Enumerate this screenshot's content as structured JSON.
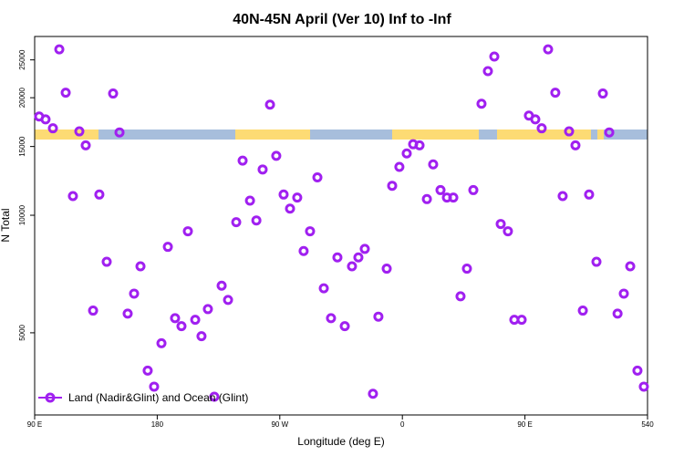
{
  "chart_data": {
    "type": "scatter",
    "title": "40N-45N April (Ver 10)   Inf to -Inf",
    "x_label": "Longitude (deg E)",
    "y_label": "N Total",
    "x": [
      93.3,
      98.0,
      103.4,
      108.1,
      112.8,
      118.1,
      122.8,
      127.5,
      132.9,
      137.5,
      142.9,
      147.6,
      152.3,
      158.3,
      163.0,
      167.7,
      173.0,
      177.7,
      183.1,
      187.8,
      193.1,
      197.8,
      202.5,
      207.9,
      212.5,
      217.2,
      221.9,
      227.3,
      232.0,
      238.0,
      242.7,
      248.1,
      252.8,
      257.4,
      262.8,
      267.4,
      272.8,
      277.5,
      282.8,
      287.5,
      292.2,
      297.6,
      302.3,
      307.6,
      312.3,
      317.7,
      323.0,
      327.7,
      332.4,
      338.4,
      342.4,
      348.5,
      352.5,
      357.8,
      363.2,
      367.9,
      372.6,
      378.0,
      382.6,
      388.0,
      392.7,
      397.4,
      402.7,
      407.4,
      412.1,
      418.1,
      422.8,
      427.5,
      432.2,
      437.5,
      442.2,
      447.6,
      452.9,
      457.6,
      462.3,
      467.0,
      472.3,
      477.7,
      482.4,
      487.1,
      492.5,
      497.1,
      502.5,
      507.2,
      511.9,
      518.0,
      522.6,
      527.3,
      532.6,
      537.3
    ],
    "series": [
      {
        "name": "Land (Nadir&Glint) and Ocean (Glint)",
        "color": "#a020f0",
        "values": [
          17900,
          17600,
          16700,
          26600,
          20600,
          11200,
          16400,
          15100,
          5700,
          11300,
          7600,
          20500,
          16300,
          5600,
          6300,
          7400,
          4000,
          3640,
          4700,
          8300,
          5450,
          5200,
          9100,
          5400,
          4900,
          5750,
          3430,
          6600,
          6070,
          9600,
          13800,
          10900,
          9700,
          13100,
          19200,
          14200,
          11300,
          10400,
          11100,
          8100,
          9100,
          12500,
          6500,
          5450,
          7800,
          5200,
          7400,
          7800,
          8200,
          3490,
          5500,
          7300,
          11900,
          13300,
          14400,
          15200,
          15100,
          11000,
          13500,
          11600,
          11100,
          11100,
          6200,
          7300,
          11600,
          19300,
          23400,
          25500,
          9500,
          9100,
          5400,
          5400,
          18000,
          17600,
          16700,
          26600,
          20600,
          11200,
          16400,
          15100,
          5700,
          11300,
          7600,
          20500,
          16300,
          5600,
          6300,
          7400,
          4000,
          3640
        ]
      }
    ],
    "xlim": [
      90,
      540
    ],
    "xticks": [
      {
        "value": 90,
        "label": "90 E"
      },
      180,
      {
        "value": 270,
        "label": "90 W"
      },
      {
        "value": 360,
        "label": "0"
      },
      {
        "value": 450,
        "label": "90 E"
      },
      540
    ],
    "ylim": [
      3080,
      28700
    ],
    "yticks": [
      5000,
      10000,
      15000,
      20000,
      25000
    ],
    "log_y": true,
    "legend": "bottom-left"
  }
}
